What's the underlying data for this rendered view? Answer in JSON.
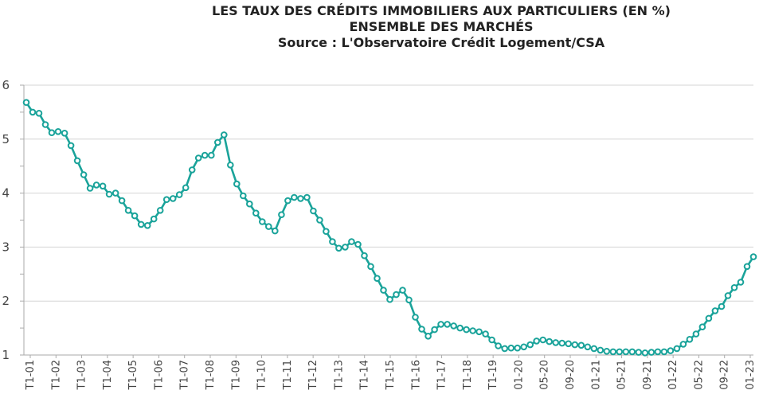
{
  "chart_data": {
    "type": "line",
    "title": "LES TAUX DES CRÉDITS IMMOBILIERS AUX PARTICULIERS (EN %)",
    "subtitle": "ENSEMBLE DES MARCHÉS",
    "source": "Source : L'Observatoire Crédit Logement/CSA",
    "ylim": [
      1,
      6
    ],
    "yticks": [
      1,
      2,
      3,
      4,
      5,
      6
    ],
    "grid": "horizontal",
    "color": "#1aa39a",
    "x_tick_labels": [
      "T1-01",
      "T1-02",
      "T1-03",
      "T1-04",
      "T1-05",
      "T1-06",
      "T1-07",
      "T1-08",
      "T1-09",
      "T1-10",
      "T1-11",
      "T1-12",
      "T1-13",
      "T1-14",
      "T1-15",
      "T1-16",
      "T1-17",
      "T1-18",
      "T1-19",
      "01-20",
      "05-20",
      "09-20",
      "01-21",
      "05-21",
      "09-21",
      "01-22",
      "05-22",
      "09-22",
      "01-23"
    ],
    "values": [
      5.68,
      5.5,
      5.48,
      5.27,
      5.12,
      5.14,
      5.11,
      4.88,
      4.6,
      4.34,
      4.09,
      4.15,
      4.13,
      3.98,
      4.0,
      3.86,
      3.68,
      3.58,
      3.42,
      3.4,
      3.52,
      3.68,
      3.88,
      3.9,
      3.97,
      4.1,
      4.43,
      4.65,
      4.7,
      4.7,
      4.94,
      5.08,
      4.52,
      4.17,
      3.95,
      3.8,
      3.63,
      3.47,
      3.38,
      3.3,
      3.6,
      3.86,
      3.92,
      3.9,
      3.92,
      3.67,
      3.5,
      3.29,
      3.1,
      2.98,
      3.0,
      3.1,
      3.05,
      2.84,
      2.64,
      2.42,
      2.2,
      2.03,
      2.12,
      2.2,
      2.02,
      1.7,
      1.48,
      1.35,
      1.47,
      1.57,
      1.57,
      1.54,
      1.5,
      1.47,
      1.45,
      1.43,
      1.39,
      1.28,
      1.17,
      1.12,
      1.13,
      1.13,
      1.15,
      1.19,
      1.26,
      1.28,
      1.25,
      1.23,
      1.22,
      1.21,
      1.19,
      1.18,
      1.15,
      1.12,
      1.09,
      1.07,
      1.06,
      1.06,
      1.06,
      1.06,
      1.05,
      1.04,
      1.05,
      1.06,
      1.06,
      1.08,
      1.12,
      1.2,
      1.29,
      1.39,
      1.52,
      1.68,
      1.82,
      1.9,
      2.1,
      2.25,
      2.35,
      2.64,
      2.82
    ]
  }
}
